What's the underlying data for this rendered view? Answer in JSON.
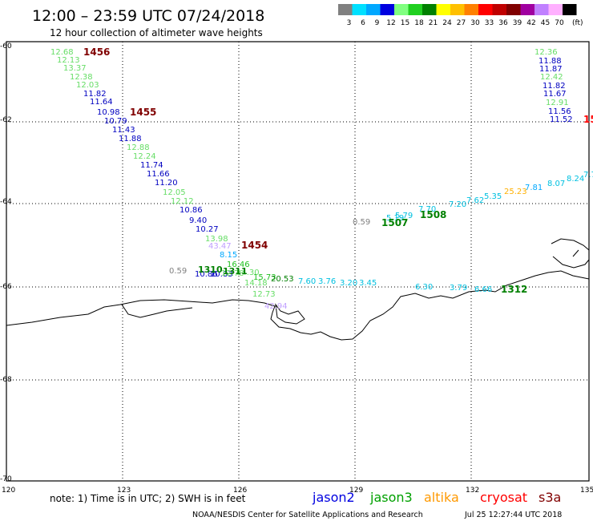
{
  "header": {
    "title": "12:00 – 23:59 UTC 07/24/2018",
    "subtitle": "12 hour collection of altimeter wave heights"
  },
  "legend": {
    "unit": "(ft)",
    "bins": [
      {
        "label": "3",
        "color": "#808080"
      },
      {
        "label": "6",
        "color": "#00e0ff"
      },
      {
        "label": "9",
        "color": "#00a8ff"
      },
      {
        "label": "12",
        "color": "#0000e0"
      },
      {
        "label": "15",
        "color": "#80ff80"
      },
      {
        "label": "18",
        "color": "#20d020"
      },
      {
        "label": "21",
        "color": "#008000"
      },
      {
        "label": "24",
        "color": "#ffff00"
      },
      {
        "label": "27",
        "color": "#ffc000"
      },
      {
        "label": "30",
        "color": "#ff8000"
      },
      {
        "label": "33",
        "color": "#ff0000"
      },
      {
        "label": "36",
        "color": "#c00000"
      },
      {
        "label": "39",
        "color": "#800000"
      },
      {
        "label": "42",
        "color": "#a000a0"
      },
      {
        "label": "45",
        "color": "#c080ff"
      },
      {
        "label": "70",
        "color": "#ffb0ff"
      },
      {
        "label": "",
        "color": "#000000"
      }
    ]
  },
  "axes": {
    "lat_labels": [
      "-60",
      "-62",
      "-64",
      "-66",
      "-68",
      "-70"
    ],
    "lon_labels": [
      "120",
      "123",
      "126",
      "129",
      "132",
      "135"
    ]
  },
  "colors": {
    "dark_blue": "#0000c0",
    "light_green": "#66dd66",
    "dark_green": "#008000",
    "cyan": "#00c0e0",
    "gray": "#808080",
    "lavender": "#c0a0ff",
    "maroon": "#800000",
    "red": "#ff0000",
    "orange": "#ffb000"
  },
  "track_west": [
    {
      "v": "12.68",
      "c": "#66dd66"
    },
    {
      "v": "12.13",
      "c": "#66dd66"
    },
    {
      "v": "13.37",
      "c": "#66dd66"
    },
    {
      "v": "12.38",
      "c": "#66dd66"
    },
    {
      "v": "12.03",
      "c": "#66dd66"
    },
    {
      "v": "11.82",
      "c": "#0000c0"
    },
    {
      "v": "11.64",
      "c": "#0000c0"
    },
    {
      "v": "10.98",
      "c": "#0000c0"
    },
    {
      "v": "10.79",
      "c": "#0000c0"
    },
    {
      "v": "11.43",
      "c": "#0000c0"
    },
    {
      "v": "11.88",
      "c": "#0000c0"
    },
    {
      "v": "12.88",
      "c": "#66dd66"
    },
    {
      "v": "12.24",
      "c": "#66dd66"
    },
    {
      "v": "11.74",
      "c": "#0000c0"
    },
    {
      "v": "11.66",
      "c": "#0000c0"
    },
    {
      "v": "11.20",
      "c": "#0000c0"
    },
    {
      "v": "12.05",
      "c": "#66dd66"
    },
    {
      "v": "12.12",
      "c": "#66dd66"
    },
    {
      "v": "10.86",
      "c": "#0000c0"
    },
    {
      "v": "9.40",
      "c": "#0000c0"
    },
    {
      "v": "10.27",
      "c": "#0000c0"
    },
    {
      "v": "13.98",
      "c": "#66dd66"
    },
    {
      "v": "43.47",
      "c": "#c0a0ff"
    },
    {
      "v": "8.15",
      "c": "#00a8ff"
    }
  ],
  "track_east": [
    {
      "v": "12.36",
      "c": "#66dd66"
    },
    {
      "v": "11.88",
      "c": "#0000c0"
    },
    {
      "v": "11.87",
      "c": "#0000c0"
    },
    {
      "v": "12.42",
      "c": "#66dd66"
    },
    {
      "v": "11.82",
      "c": "#0000c0"
    },
    {
      "v": "11.67",
      "c": "#0000c0"
    },
    {
      "v": "12.91",
      "c": "#66dd66"
    },
    {
      "v": "11.56",
      "c": "#0000c0"
    },
    {
      "v": "11.52",
      "c": "#0000c0"
    }
  ],
  "track_ne": [
    {
      "v": "0.59",
      "c": "#808080"
    },
    {
      "v": "5.19",
      "c": "#00c0e0"
    },
    {
      "v": "5.79",
      "c": "#00c0e0"
    },
    {
      "v": "7.70",
      "c": "#00c0e0"
    },
    {
      "v": "7.20",
      "c": "#00c0e0"
    },
    {
      "v": "7.62",
      "c": "#00c0e0"
    },
    {
      "v": "5.35",
      "c": "#00c0e0"
    },
    {
      "v": "25.23",
      "c": "#ffb000"
    },
    {
      "v": "7.81",
      "c": "#00a8ff"
    },
    {
      "v": "8.07",
      "c": "#00c0e0"
    },
    {
      "v": "8.24",
      "c": "#00c0e0"
    },
    {
      "v": "7.7",
      "c": "#00c0e0"
    }
  ],
  "track_coast": [
    {
      "v": "0.59",
      "c": "#808080"
    },
    {
      "v": "10.86",
      "c": "#0000c0"
    },
    {
      "v": "10.83",
      "c": "#0000c0"
    },
    {
      "v": "12.78",
      "c": "#66dd66"
    },
    {
      "v": "14.30",
      "c": "#66dd66"
    },
    {
      "v": "16.46",
      "c": "#20c020"
    },
    {
      "v": "15.73",
      "c": "#20c020"
    },
    {
      "v": "20.53",
      "c": "#008000"
    },
    {
      "v": "14.18",
      "c": "#66dd66"
    },
    {
      "v": "12.73",
      "c": "#66dd66"
    },
    {
      "v": "42.94",
      "c": "#c0a0ff"
    },
    {
      "v": "7.60",
      "c": "#00c0e0"
    },
    {
      "v": "3.76",
      "c": "#00c0e0"
    },
    {
      "v": "3.20",
      "c": "#00c0e0"
    },
    {
      "v": "3.45",
      "c": "#00c0e0"
    },
    {
      "v": "6.30",
      "c": "#00c0e0"
    },
    {
      "v": "3.79",
      "c": "#00c0e0"
    },
    {
      "v": "6.66",
      "c": "#00c0e0"
    }
  ],
  "time_stamps": [
    {
      "v": "1456",
      "c": "#800000"
    },
    {
      "v": "1455",
      "c": "#800000"
    },
    {
      "v": "1454",
      "c": "#800000"
    },
    {
      "v": "15",
      "c": "#ff0000"
    },
    {
      "v": "1507",
      "c": "#008000"
    },
    {
      "v": "1508",
      "c": "#008000"
    },
    {
      "v": "1310",
      "c": "#008000"
    },
    {
      "v": "1311",
      "c": "#008000"
    },
    {
      "v": "1312",
      "c": "#008000"
    }
  ],
  "footer": {
    "note": "note:  1) Time is in UTC;  2) SWH is in feet",
    "credit": "NOAA/NESDIS Center for Satellite Applications and Research",
    "timestamp": "Jul 25 12:27:44 UTC 2018",
    "satellites": [
      {
        "name": "jason2",
        "color": "#0000e0"
      },
      {
        "name": "jason3",
        "color": "#00a000"
      },
      {
        "name": "altika",
        "color": "#ff9900"
      },
      {
        "name": "cryosat",
        "color": "#ff0000"
      },
      {
        "name": "s3a",
        "color": "#800000"
      }
    ]
  }
}
